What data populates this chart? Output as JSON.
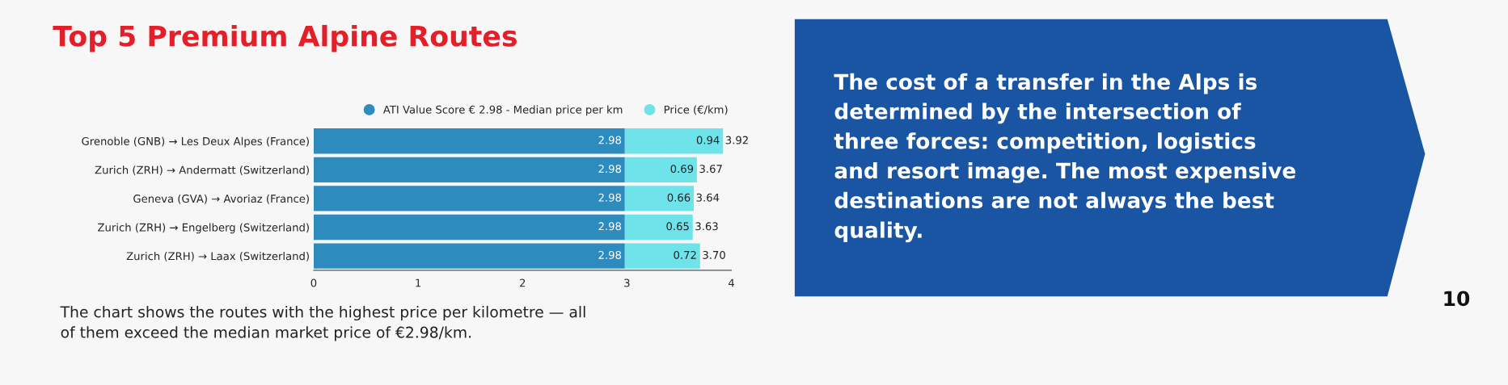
{
  "chart_data": {
    "type": "bar",
    "orientation": "horizontal",
    "stacked": true,
    "title": "Top 5 Premium Alpine Routes",
    "categories": [
      "Grenoble (GNB) → Les Deux Alpes (France)",
      "Zurich (ZRH) → Andermatt (Switzerland)",
      "Geneva (GVA) → Avoriaz (France)",
      "Zurich (ZRH) → Engelberg (Switzerland)",
      "Zurich (ZRH) → Laax (Switzerland)"
    ],
    "series": [
      {
        "name": "ATI Value Score € 2.98 - Median price per km",
        "color": "#2e8bbd",
        "values": [
          2.98,
          2.98,
          2.98,
          2.98,
          2.98
        ]
      },
      {
        "name": "Price (€/km)",
        "color": "#6ee3e9",
        "values": [
          0.94,
          0.69,
          0.66,
          0.65,
          0.72
        ]
      }
    ],
    "totals": [
      "3.92",
      "3.67",
      "3.64",
      "3.63",
      "3.70"
    ],
    "data_labels": true,
    "xlim": [
      0,
      4
    ],
    "xticks": [
      0,
      1,
      2,
      3,
      4
    ],
    "legend": "top",
    "annotations": [
      "The chart shows the routes with the highest price per kilometre — all\nof them exceed the median market price of €2.98/km.",
      "The cost of a transfer in the Alps is\ndetermined by the intersection of\nthree forces: competition, logistics\nand resort image. The most expensive\ndestinations are not always the best\nquality.",
      "10"
    ]
  }
}
